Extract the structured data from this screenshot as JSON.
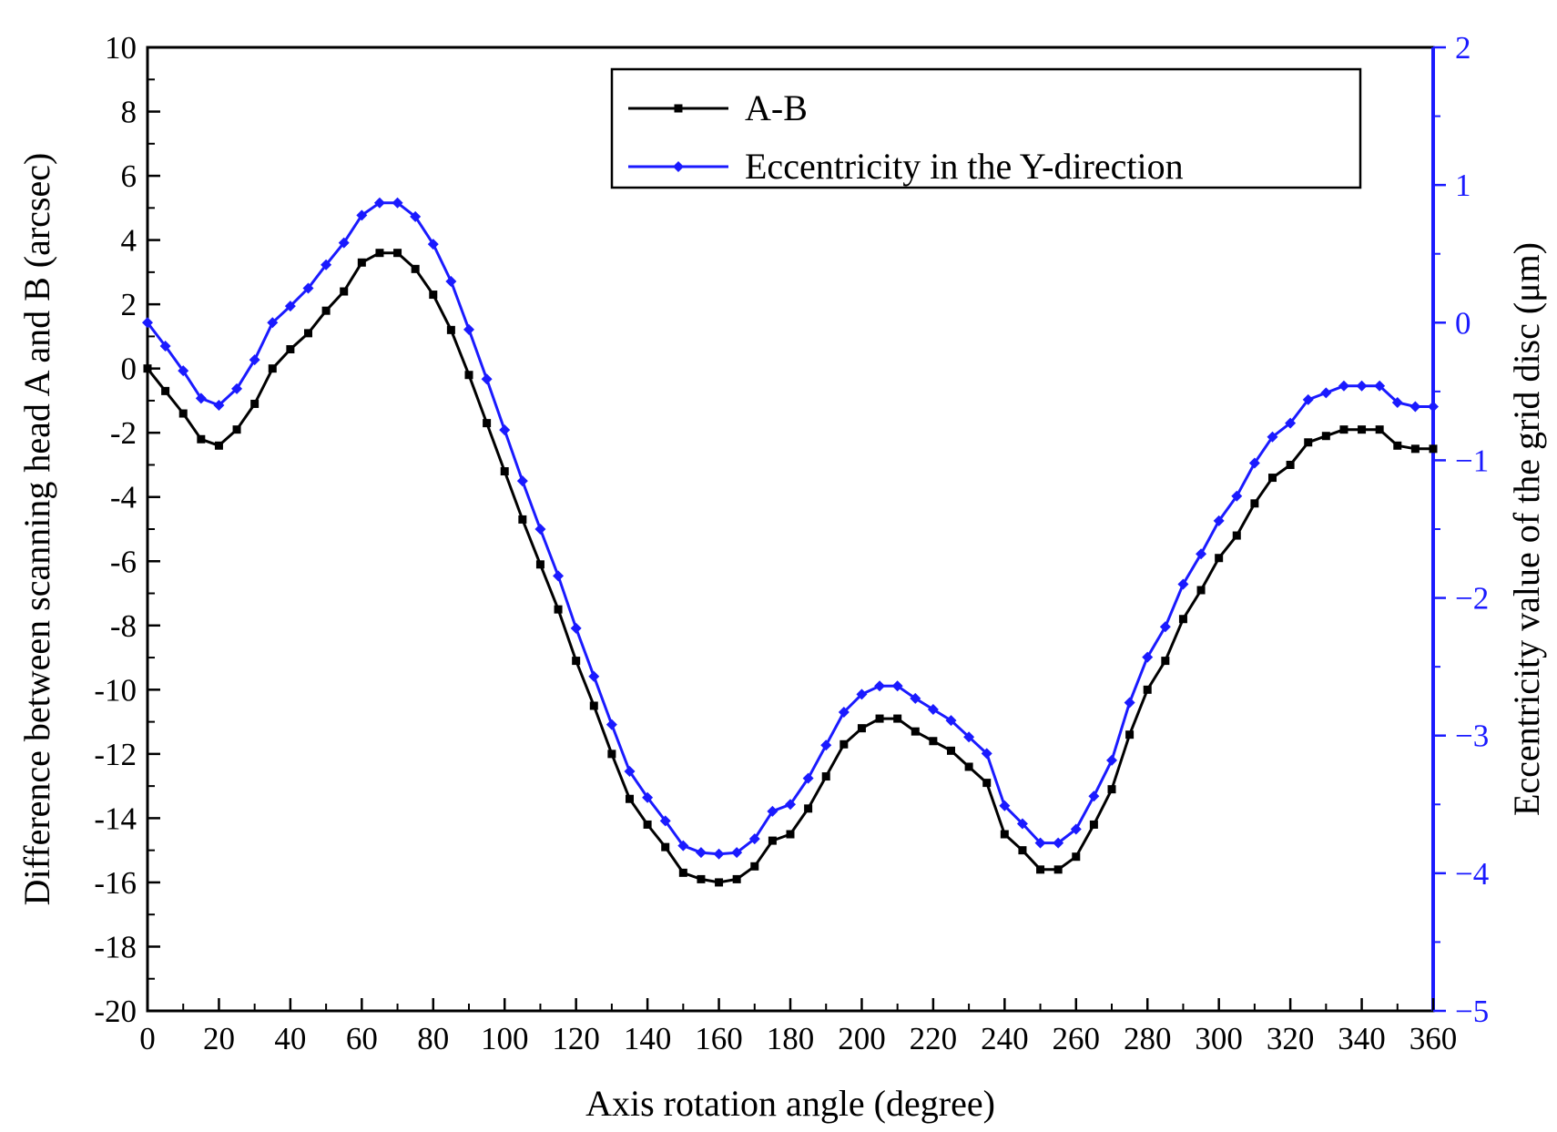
{
  "chart_data": {
    "type": "line",
    "title": "",
    "xlabel": "Axis rotation angle (degree)",
    "ylabel_left": "Difference between scanning head A and B (arcsec)",
    "ylabel_right": "Eccentricity value of the grid disc (μm)",
    "xlim": [
      0,
      360
    ],
    "ylim_left": [
      -20,
      10
    ],
    "ylim_right": [
      -5,
      2
    ],
    "x_ticks": [
      "0",
      "20",
      "40",
      "60",
      "80",
      "100",
      "120",
      "140",
      "160",
      "180",
      "200",
      "220",
      "240",
      "260",
      "280",
      "300",
      "320",
      "340",
      "360"
    ],
    "y_left_ticks": [
      "10",
      "8",
      "6",
      "4",
      "2",
      "0",
      "-2",
      "-4",
      "-6",
      "-8",
      "-10",
      "-12",
      "-14",
      "-16",
      "-18",
      "-20"
    ],
    "y_right_ticks": [
      "2",
      "1",
      "0",
      "-1",
      "-2",
      "-3",
      "-4",
      "-5"
    ],
    "grid": false,
    "legend_position": "top-right",
    "x": [
      0,
      5,
      10,
      15,
      20,
      25,
      30,
      35,
      40,
      45,
      50,
      55,
      60,
      65,
      70,
      75,
      80,
      85,
      90,
      95,
      100,
      105,
      110,
      115,
      120,
      125,
      130,
      135,
      140,
      145,
      150,
      155,
      160,
      165,
      170,
      175,
      180,
      185,
      190,
      195,
      200,
      205,
      210,
      215,
      220,
      225,
      230,
      235,
      240,
      245,
      250,
      255,
      260,
      265,
      270,
      275,
      280,
      285,
      290,
      295,
      300,
      305,
      310,
      315,
      320,
      325,
      330,
      335,
      340,
      345,
      350,
      355,
      360
    ],
    "series": [
      {
        "name": "A-B",
        "axis": "left",
        "color": "#000000",
        "marker": "square",
        "values": [
          0.0,
          -0.7,
          -1.4,
          -2.2,
          -2.4,
          -1.9,
          -1.1,
          0.0,
          0.6,
          1.1,
          1.8,
          2.4,
          3.3,
          3.6,
          3.6,
          3.1,
          2.3,
          1.2,
          -0.2,
          -1.7,
          -3.2,
          -4.7,
          -6.1,
          -7.5,
          -9.1,
          -10.5,
          -12.0,
          -13.4,
          -14.2,
          -14.9,
          -15.7,
          -15.9,
          -16.0,
          -15.9,
          -15.5,
          -14.7,
          -14.5,
          -13.7,
          -12.7,
          -11.7,
          -11.2,
          -10.9,
          -10.9,
          -11.3,
          -11.6,
          -11.9,
          -12.4,
          -12.9,
          -14.5,
          -15.0,
          -15.6,
          -15.6,
          -15.2,
          -14.2,
          -13.1,
          -11.4,
          -10.0,
          -9.1,
          -7.8,
          -6.9,
          -5.9,
          -5.2,
          -4.2,
          -3.4,
          -3.0,
          -2.3,
          -2.1,
          -1.9,
          -1.9,
          -1.9,
          -2.4,
          -2.5,
          -2.5
        ]
      },
      {
        "name": "Eccentricity in the Y-direction",
        "axis": "right",
        "color": "#1a1aff",
        "marker": "diamond",
        "values": [
          0.0,
          -0.17,
          -0.35,
          -0.55,
          -0.6,
          -0.48,
          -0.27,
          0.0,
          0.12,
          0.25,
          0.42,
          0.58,
          0.78,
          0.87,
          0.87,
          0.77,
          0.57,
          0.3,
          -0.05,
          -0.41,
          -0.78,
          -1.15,
          -1.5,
          -1.84,
          -2.22,
          -2.57,
          -2.92,
          -3.26,
          -3.45,
          -3.62,
          -3.8,
          -3.85,
          -3.86,
          -3.85,
          -3.75,
          -3.55,
          -3.5,
          -3.31,
          -3.07,
          -2.83,
          -2.7,
          -2.64,
          -2.64,
          -2.73,
          -2.81,
          -2.89,
          -3.01,
          -3.13,
          -3.51,
          -3.64,
          -3.78,
          -3.78,
          -3.68,
          -3.44,
          -3.18,
          -2.76,
          -2.43,
          -2.21,
          -1.9,
          -1.68,
          -1.44,
          -1.26,
          -1.02,
          -0.83,
          -0.73,
          -0.56,
          -0.51,
          -0.46,
          -0.46,
          -0.46,
          -0.58,
          -0.61,
          -0.61
        ]
      }
    ]
  }
}
